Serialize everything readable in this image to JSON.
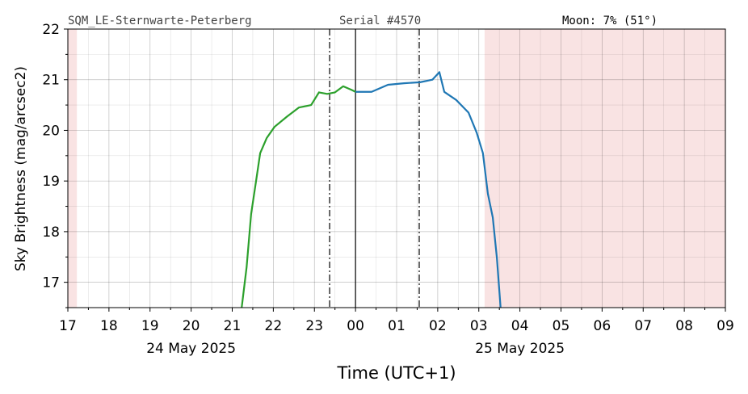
{
  "chart_data": {
    "type": "line",
    "header": {
      "site": "SQM_LE-Sternwarte-Peterberg",
      "serial": "Serial #4570",
      "moon": "Moon: 7% (51°)"
    },
    "xlabel": "Time (UTC+1)",
    "ylabel": "Sky Brightness (mag/arcsec2)",
    "xlim": [
      17,
      33
    ],
    "ylim": [
      16.5,
      22
    ],
    "xticks": [
      17,
      18,
      19,
      20,
      21,
      22,
      23,
      {
        "value": 24,
        "label": "00"
      },
      {
        "value": 25,
        "label": "01"
      },
      {
        "value": 26,
        "label": "02"
      },
      {
        "value": 27,
        "label": "03"
      },
      {
        "value": 28,
        "label": "04"
      },
      {
        "value": 29,
        "label": "05"
      },
      {
        "value": 30,
        "label": "06"
      },
      {
        "value": 31,
        "label": "07"
      },
      {
        "value": 32,
        "label": "08"
      },
      {
        "value": 33,
        "label": "09"
      }
    ],
    "xminorticks": [
      17.5,
      18.5,
      19.5,
      20.5,
      21.5,
      22.5,
      23.5,
      24.5,
      25.5,
      26.5,
      27.5,
      28.5,
      29.5,
      30.5,
      31.5,
      32.5
    ],
    "yticks": [
      17,
      18,
      19,
      20,
      21,
      22
    ],
    "yminorticks": [
      16.5,
      17.5,
      18.5,
      19.5,
      20.5,
      21.5
    ],
    "grid": true,
    "date_labels": [
      {
        "text": "24 May 2025",
        "x": 20
      },
      {
        "text": "25 May 2025",
        "x": 28
      }
    ],
    "shaded_regions": [
      {
        "xlim": [
          17,
          17.22
        ],
        "color": "#f9e3e3"
      },
      {
        "xlim": [
          27.14,
          33
        ],
        "color": "#f9e3e3"
      }
    ],
    "vlines": [
      {
        "x": 23.37,
        "style": "dashdot"
      },
      {
        "x": 24,
        "style": "solid"
      },
      {
        "x": 25.55,
        "style": "dashdot"
      }
    ],
    "series": [
      {
        "color": "#2ca02c",
        "x": [
          21.23,
          21.35,
          21.46,
          21.58,
          21.68,
          21.84,
          22.03,
          22.33,
          22.62,
          22.92,
          23.11,
          23.31,
          23.5,
          23.7,
          23.9,
          24.0
        ],
        "values": [
          16.5,
          17.3,
          18.35,
          19.0,
          19.55,
          19.85,
          20.07,
          20.27,
          20.45,
          20.5,
          20.75,
          20.72,
          20.75,
          20.87,
          20.8,
          20.76
        ]
      },
      {
        "color": "#1f77b4",
        "x": [
          24.0,
          24.39,
          24.79,
          25.18,
          25.57,
          25.87,
          26.04,
          26.16,
          26.45,
          26.75,
          26.95,
          27.1,
          27.22,
          27.34,
          27.44,
          27.53
        ],
        "values": [
          20.76,
          20.76,
          20.9,
          20.93,
          20.95,
          21.0,
          21.15,
          20.76,
          20.6,
          20.35,
          19.95,
          19.55,
          18.75,
          18.28,
          17.48,
          16.5
        ]
      }
    ]
  }
}
